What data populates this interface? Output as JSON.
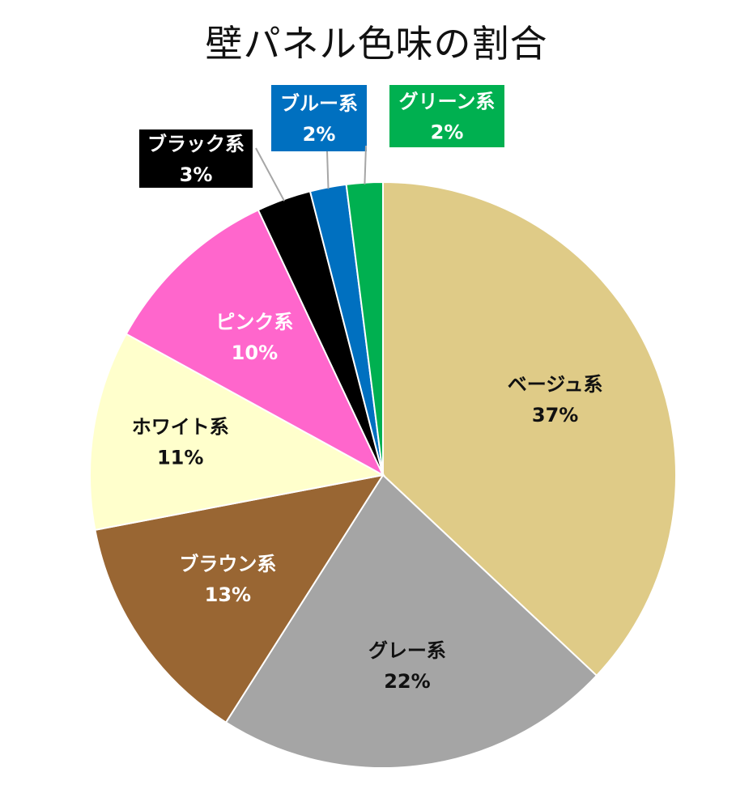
{
  "chart_data": {
    "type": "pie",
    "title": "壁パネル色味の割合",
    "slices": [
      {
        "label": "ベージュ系",
        "pct_text": "37%",
        "value": 37,
        "color": "#DFCB87",
        "text_color": "#111111"
      },
      {
        "label": "グレー系",
        "pct_text": "22%",
        "value": 22,
        "color": "#A5A5A5",
        "text_color": "#111111"
      },
      {
        "label": "ブラウン系",
        "pct_text": "13%",
        "value": 13,
        "color": "#996633",
        "text_color": "#ffffff"
      },
      {
        "label": "ホワイト系",
        "pct_text": "11%",
        "value": 11,
        "color": "#FFFFCC",
        "text_color": "#111111"
      },
      {
        "label": "ピンク系",
        "pct_text": "10%",
        "value": 10,
        "color": "#FF66CC",
        "text_color": "#ffffff"
      },
      {
        "label": "ブラック系",
        "pct_text": "3%",
        "value": 3,
        "color": "#000000",
        "text_color": "#ffffff"
      },
      {
        "label": "ブルー系",
        "pct_text": "2%",
        "value": 2,
        "color": "#0070C0",
        "text_color": "#ffffff"
      },
      {
        "label": "グリーン系",
        "pct_text": "2%",
        "value": 2,
        "color": "#00B050",
        "text_color": "#ffffff"
      }
    ],
    "start": "12 o'clock",
    "direction": "clockwise",
    "legend": "none",
    "data_labels": "category name and percentage"
  }
}
